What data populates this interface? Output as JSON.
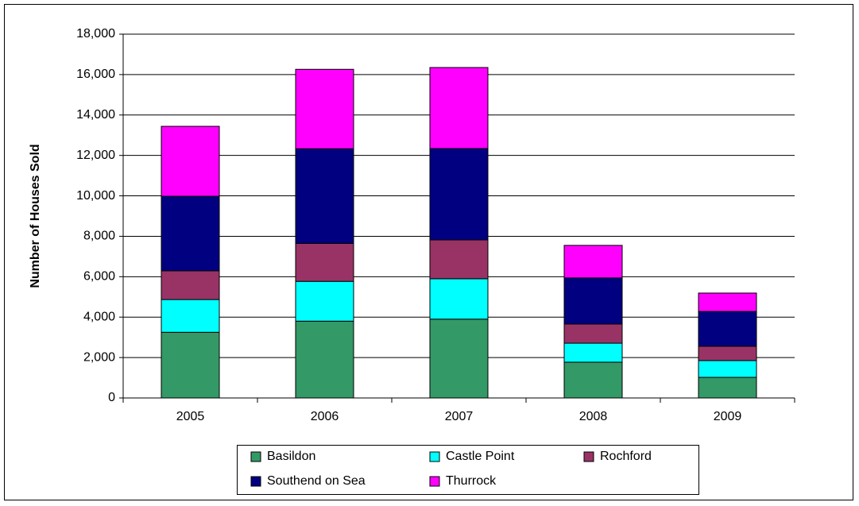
{
  "chart_data": {
    "type": "stacked_bar",
    "y_label": "Number of Houses Sold",
    "categories": [
      "2005",
      "2006",
      "2007",
      "2008",
      "2009"
    ],
    "series": [
      {
        "name": "Basildon",
        "color": "#339966",
        "values": [
          3250,
          3800,
          3900,
          1770,
          1020
        ]
      },
      {
        "name": "Castle Point",
        "color": "#00ffff",
        "values": [
          1620,
          1970,
          2000,
          940,
          830
        ]
      },
      {
        "name": "Rochford",
        "color": "#993366",
        "values": [
          1420,
          1880,
          1920,
          950,
          710
        ]
      },
      {
        "name": "Southend on Sea",
        "color": "#000080",
        "values": [
          3690,
          4680,
          4520,
          2280,
          1720
        ]
      },
      {
        "name": "Thurrock",
        "color": "#ff00ff",
        "values": [
          3460,
          3930,
          4010,
          1610,
          910
        ]
      }
    ],
    "ylim": [
      0,
      18000
    ],
    "yticks": [
      0,
      {
        "value": 2000,
        "label": "2,000"
      },
      {
        "value": 4000,
        "label": "4,000"
      },
      {
        "value": 6000,
        "label": "6,000"
      },
      {
        "value": 8000,
        "label": "8,000"
      },
      {
        "value": 10000,
        "label": "10,000"
      },
      {
        "value": 12000,
        "label": "12,000"
      },
      {
        "value": 14000,
        "label": "14,000"
      },
      {
        "value": 16000,
        "label": "16,000"
      },
      {
        "value": 18000,
        "label": "18,000"
      }
    ],
    "grid": true
  }
}
